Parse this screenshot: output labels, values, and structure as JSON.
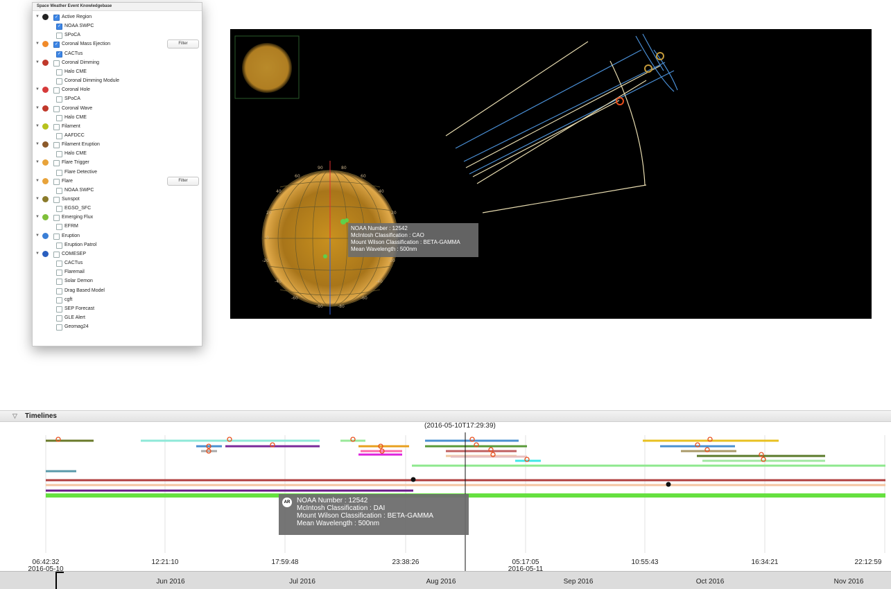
{
  "kb": {
    "title": "Space Weather Event Knowledgebase",
    "filter_label": "Filter",
    "rows": [
      {
        "type": "cat",
        "label": "Active Region",
        "checked": true,
        "color": "#222"
      },
      {
        "type": "sub",
        "label": "NOAA SWPC",
        "checked": true
      },
      {
        "type": "sub",
        "label": "SPoCA",
        "checked": false
      },
      {
        "type": "cat",
        "label": "Coronal Mass Ejection",
        "checked": true,
        "color": "#f08a2a",
        "filter": true
      },
      {
        "type": "sub",
        "label": "CACTus",
        "checked": true
      },
      {
        "type": "cat",
        "label": "Coronal Dimming",
        "checked": false,
        "color": "#c0392b"
      },
      {
        "type": "sub",
        "label": "Halo CME",
        "checked": false
      },
      {
        "type": "sub",
        "label": "Coronal Dimming Module",
        "checked": false
      },
      {
        "type": "cat",
        "label": "Coronal Hole",
        "checked": false,
        "color": "#d63a3a"
      },
      {
        "type": "sub",
        "label": "SPoCA",
        "checked": false
      },
      {
        "type": "cat",
        "label": "Coronal Wave",
        "checked": false,
        "color": "#c0392b"
      },
      {
        "type": "sub",
        "label": "Halo CME",
        "checked": false
      },
      {
        "type": "cat",
        "label": "Filament",
        "checked": false,
        "color": "#b7c21d"
      },
      {
        "type": "sub",
        "label": "AAFDCC",
        "checked": false
      },
      {
        "type": "cat",
        "label": "Filament Eruption",
        "checked": false,
        "color": "#8c5a2b"
      },
      {
        "type": "sub",
        "label": "Halo CME",
        "checked": false
      },
      {
        "type": "cat",
        "label": "Flare Trigger",
        "checked": false,
        "color": "#e8a33a"
      },
      {
        "type": "sub",
        "label": "Flare Detective",
        "checked": false
      },
      {
        "type": "cat",
        "label": "Flare",
        "checked": false,
        "color": "#e8a33a",
        "filter": true
      },
      {
        "type": "sub",
        "label": "NOAA SWPC",
        "checked": false
      },
      {
        "type": "cat",
        "label": "Sunspot",
        "checked": false,
        "color": "#8a7a2a"
      },
      {
        "type": "sub",
        "label": "EGSO_SFC",
        "checked": false
      },
      {
        "type": "cat",
        "label": "Emerging Flux",
        "checked": false,
        "color": "#7fbf3a"
      },
      {
        "type": "sub",
        "label": "EFRM",
        "checked": false
      },
      {
        "type": "cat",
        "label": "Eruption",
        "checked": false,
        "color": "#3a7fd6"
      },
      {
        "type": "sub",
        "label": "Eruption Patrol",
        "checked": false
      },
      {
        "type": "cat",
        "label": "COMESEP",
        "checked": false,
        "color": "#2a5fbf"
      },
      {
        "type": "sub",
        "label": "CACTus",
        "checked": false
      },
      {
        "type": "sub",
        "label": "Flaremail",
        "checked": false
      },
      {
        "type": "sub",
        "label": "Solar Demon",
        "checked": false
      },
      {
        "type": "sub",
        "label": "Drag Based Model",
        "checked": false
      },
      {
        "type": "sub",
        "label": "cgft",
        "checked": false
      },
      {
        "type": "sub",
        "label": "SEP Forecast",
        "checked": false
      },
      {
        "type": "sub",
        "label": "GLE Alert",
        "checked": false
      },
      {
        "type": "sub",
        "label": "Geomag24",
        "checked": false
      }
    ]
  },
  "viewport": {
    "tooltip": [
      "NOAA Number : 12542",
      "McIntosh Classification : CAO",
      "Mount Wilson Classification : BETA-GAMMA",
      "Mean Wavelength : 500nm"
    ],
    "grid_labels": [
      "90",
      "60",
      "40",
      "20",
      "0",
      "-20",
      "-40",
      "-60",
      "-80",
      "80",
      "30",
      "50",
      "70"
    ]
  },
  "timeline": {
    "title": "Timelines",
    "selected_time": "(2016-05-10T17:29:39)",
    "tooltip": [
      "NOAA Number : 12542",
      "McIntosh Classification : DAI",
      "Mount Wilson Classification : BETA-GAMMA",
      "Mean Wavelength : 500nm"
    ],
    "tooltip_icon": "AR",
    "ticks": [
      "06:42:32",
      "12:21:10",
      "17:59:48",
      "23:38:26",
      "05:17:05",
      "10:55:43",
      "16:34:21",
      "22:12:59"
    ],
    "tick_dates": [
      "2016-05-10",
      "2016-05-11"
    ],
    "months": [
      "Jun 2016",
      "Jul 2016",
      "Aug 2016",
      "Sep 2016",
      "Oct 2016",
      "Nov 2016"
    ]
  },
  "colors": {
    "sun": "#d9a53a",
    "grid": "#6b5a2a",
    "fov": "#e8dcb0",
    "fov_blue": "#4a8fd6",
    "cme_marker": "#e84e1b"
  }
}
